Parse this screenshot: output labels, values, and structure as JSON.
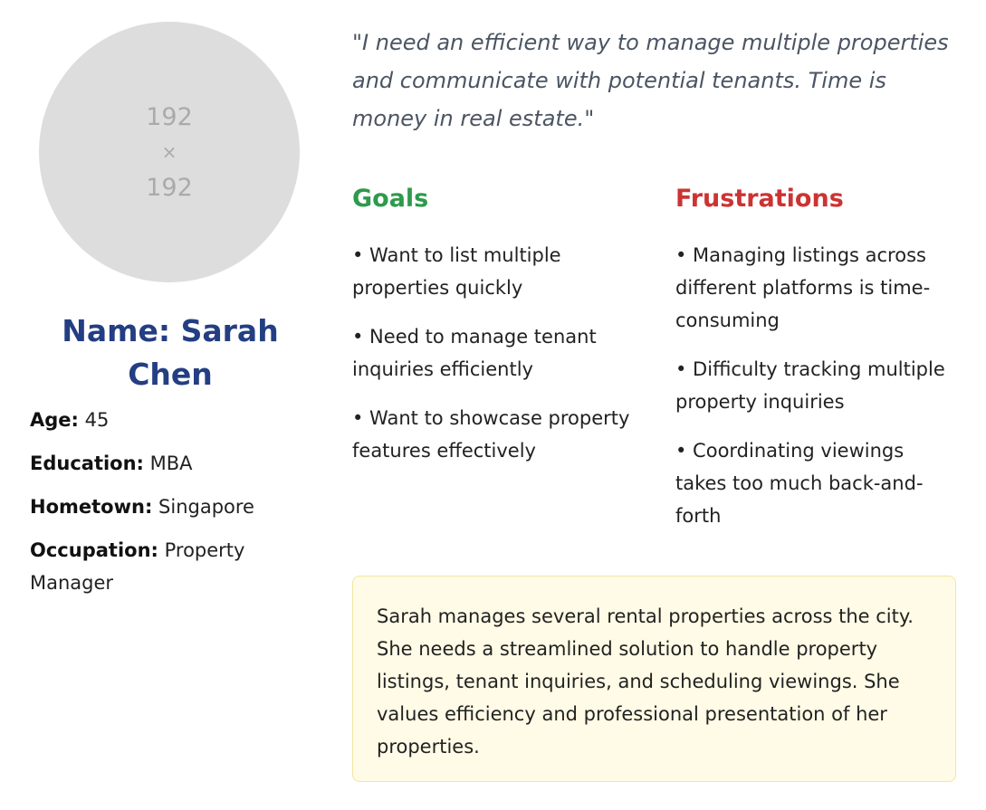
{
  "profile": {
    "avatar_line1": "192",
    "avatar_symbol": "×",
    "avatar_line2": "192",
    "name": "Name: Sarah Chen",
    "details": [
      {
        "label": "Age:",
        "value": "45"
      },
      {
        "label": "Education:",
        "value": "MBA"
      },
      {
        "label": "Hometown:",
        "value": "Singapore"
      },
      {
        "label": "Occupation:",
        "value": "Property Manager"
      }
    ]
  },
  "quote": "\"I need an efficient way to manage multiple properties and communicate with potential tenants. Time is money in real estate.\"",
  "goals": {
    "title": "Goals",
    "items": [
      "• Want to list multiple properties quickly",
      "• Need to manage tenant inquiries efficiently",
      "• Want to showcase property features effectively"
    ]
  },
  "frustrations": {
    "title": "Frustrations",
    "items": [
      "• Managing listings across different platforms is time-consuming",
      "• Difficulty tracking multiple property inquiries",
      "• Coordinating viewings takes too much back-and-forth"
    ]
  },
  "bio": "Sarah manages several rental properties across the city. She needs a streamlined solution to handle property listings, tenant inquiries, and scheduling viewings. She values efficiency and professional presentation of her properties.",
  "colors": {
    "name": "#243e83",
    "goals": "#2d9a4c",
    "frustrations": "#cc3333",
    "bio_background": "#fffbe6"
  }
}
